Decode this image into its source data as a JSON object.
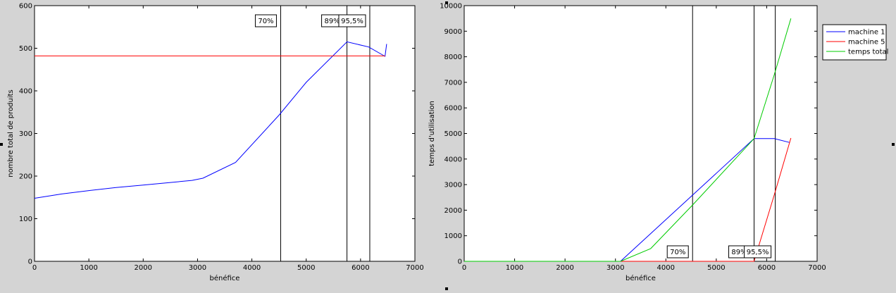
{
  "chart_data": [
    {
      "type": "line",
      "xlabel": "bénéfice",
      "ylabel": "nombre total de produits",
      "xlim": [
        0,
        7000
      ],
      "ylim": [
        0,
        600
      ],
      "xticks": [
        0,
        1000,
        2000,
        3000,
        4000,
        5000,
        6000,
        7000
      ],
      "yticks": [
        0,
        100,
        200,
        300,
        400,
        500,
        600
      ],
      "grid": false,
      "series": [
        {
          "color": "#0000ff",
          "x": [
            0,
            500,
            1000,
            1500,
            2000,
            2500,
            2900,
            3100,
            3700,
            4500,
            5000,
            5750,
            6150,
            6450,
            6480
          ],
          "y": [
            148,
            158,
            166,
            173,
            179,
            185,
            190,
            195,
            232,
            343,
            420,
            515,
            503,
            481,
            510
          ]
        },
        {
          "color": "#ff0000",
          "x": [
            0,
            6450
          ],
          "y": [
            482,
            482
          ]
        }
      ],
      "vlines": [
        {
          "x": 4530,
          "label": "70%"
        },
        {
          "x": 5750,
          "label": "89%"
        },
        {
          "x": 6170,
          "label": "95,5%"
        }
      ]
    },
    {
      "type": "line",
      "xlabel": "bénéfice",
      "ylabel": "temps d'utilisation",
      "xlim": [
        0,
        7000
      ],
      "ylim": [
        0,
        10000
      ],
      "xticks": [
        0,
        1000,
        2000,
        3000,
        4000,
        5000,
        6000,
        7000
      ],
      "yticks": [
        0,
        1000,
        2000,
        3000,
        4000,
        5000,
        6000,
        7000,
        8000,
        9000,
        10000
      ],
      "grid": false,
      "legend": "top-right-outside",
      "series": [
        {
          "name": "machine 1",
          "color": "#0000ff",
          "x": [
            0,
            3100,
            5750,
            6150,
            6450
          ],
          "y": [
            0,
            0,
            4800,
            4800,
            4650
          ]
        },
        {
          "name": "machine 5",
          "color": "#ff0000",
          "x": [
            0,
            3100,
            5750,
            6150,
            6480
          ],
          "y": [
            0,
            0,
            0,
            2600,
            4820
          ]
        },
        {
          "name": "temps total",
          "color": "#00cc00",
          "x": [
            0,
            3100,
            3700,
            4530,
            5750,
            6150,
            6480
          ],
          "y": [
            0,
            0,
            500,
            2200,
            4800,
            7300,
            9500
          ]
        }
      ],
      "vlines": [
        {
          "x": 4530,
          "label": "70%"
        },
        {
          "x": 5750,
          "label": "89%"
        },
        {
          "x": 6170,
          "label": "95,5%"
        }
      ]
    }
  ]
}
